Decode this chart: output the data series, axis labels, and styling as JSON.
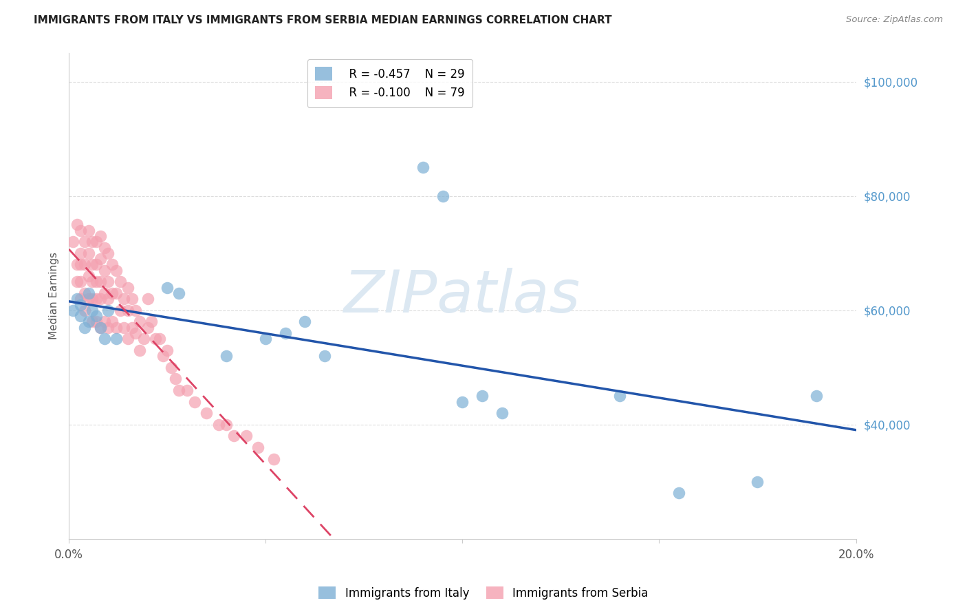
{
  "title": "IMMIGRANTS FROM ITALY VS IMMIGRANTS FROM SERBIA MEDIAN EARNINGS CORRELATION CHART",
  "source": "Source: ZipAtlas.com",
  "xlabel_italy": "Immigrants from Italy",
  "xlabel_serbia": "Immigrants from Serbia",
  "ylabel": "Median Earnings",
  "xlim": [
    0.0,
    0.2
  ],
  "ylim": [
    20000,
    105000
  ],
  "italy_color": "#7db0d5",
  "serbia_color": "#f4a0b0",
  "italy_line_color": "#2255aa",
  "serbia_line_color": "#dd4466",
  "watermark": "ZIPatlas",
  "legend_italy_r": "R = -0.457",
  "legend_italy_n": "N = 29",
  "legend_serbia_r": "R = -0.100",
  "legend_serbia_n": "N = 79",
  "italy_x": [
    0.001,
    0.002,
    0.003,
    0.003,
    0.004,
    0.005,
    0.005,
    0.006,
    0.007,
    0.008,
    0.009,
    0.01,
    0.012,
    0.025,
    0.028,
    0.04,
    0.05,
    0.055,
    0.06,
    0.065,
    0.09,
    0.095,
    0.1,
    0.105,
    0.11,
    0.14,
    0.155,
    0.175,
    0.19
  ],
  "italy_y": [
    60000,
    62000,
    61000,
    59000,
    57000,
    63000,
    58000,
    60000,
    59000,
    57000,
    55000,
    60000,
    55000,
    64000,
    63000,
    52000,
    55000,
    56000,
    58000,
    52000,
    85000,
    80000,
    44000,
    45000,
    42000,
    45000,
    28000,
    30000,
    45000
  ],
  "serbia_x": [
    0.001,
    0.002,
    0.002,
    0.002,
    0.003,
    0.003,
    0.003,
    0.003,
    0.003,
    0.004,
    0.004,
    0.004,
    0.004,
    0.005,
    0.005,
    0.005,
    0.005,
    0.006,
    0.006,
    0.006,
    0.006,
    0.006,
    0.007,
    0.007,
    0.007,
    0.007,
    0.007,
    0.008,
    0.008,
    0.008,
    0.008,
    0.008,
    0.009,
    0.009,
    0.009,
    0.009,
    0.01,
    0.01,
    0.01,
    0.01,
    0.011,
    0.011,
    0.011,
    0.012,
    0.012,
    0.012,
    0.013,
    0.013,
    0.014,
    0.014,
    0.015,
    0.015,
    0.015,
    0.016,
    0.016,
    0.017,
    0.017,
    0.018,
    0.018,
    0.019,
    0.02,
    0.02,
    0.021,
    0.022,
    0.023,
    0.024,
    0.025,
    0.026,
    0.027,
    0.028,
    0.03,
    0.032,
    0.035,
    0.038,
    0.04,
    0.042,
    0.045,
    0.048,
    0.052
  ],
  "serbia_y": [
    72000,
    75000,
    68000,
    65000,
    74000,
    70000,
    68000,
    65000,
    62000,
    72000,
    68000,
    63000,
    60000,
    74000,
    70000,
    66000,
    62000,
    72000,
    68000,
    65000,
    62000,
    58000,
    72000,
    68000,
    65000,
    62000,
    58000,
    73000,
    69000,
    65000,
    62000,
    57000,
    71000,
    67000,
    63000,
    58000,
    70000,
    65000,
    62000,
    57000,
    68000,
    63000,
    58000,
    67000,
    63000,
    57000,
    65000,
    60000,
    62000,
    57000,
    64000,
    60000,
    55000,
    62000,
    57000,
    60000,
    56000,
    58000,
    53000,
    55000,
    62000,
    57000,
    58000,
    55000,
    55000,
    52000,
    53000,
    50000,
    48000,
    46000,
    46000,
    44000,
    42000,
    40000,
    40000,
    38000,
    38000,
    36000,
    34000
  ],
  "title_color": "#222222",
  "source_color": "#888888",
  "axis_color": "#cccccc",
  "grid_color": "#dddddd",
  "ytick_color": "#5599cc",
  "watermark_color": "#dce8f2",
  "background_color": "#ffffff"
}
